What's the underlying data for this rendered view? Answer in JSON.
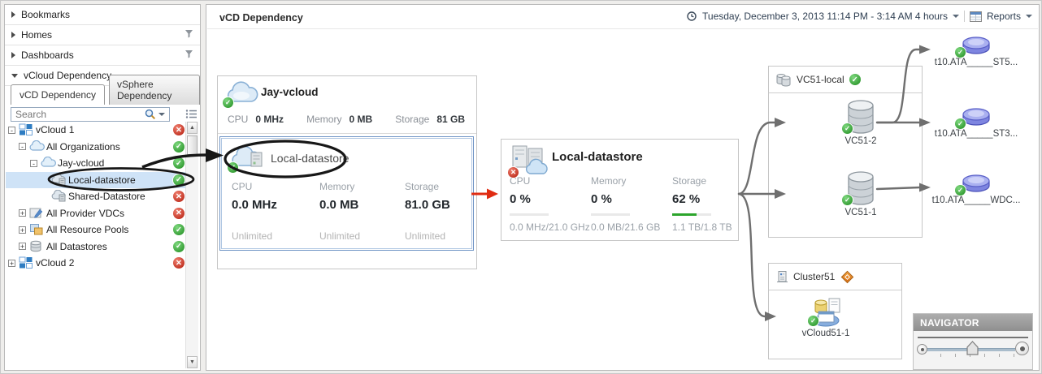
{
  "sidebar": {
    "sections": [
      {
        "label": "Bookmarks"
      },
      {
        "label": "Homes"
      },
      {
        "label": "Dashboards"
      },
      {
        "label": "vCloud Dependency"
      }
    ],
    "tabs": [
      {
        "label": "vCD Dependency",
        "active": true
      },
      {
        "label": "vSphere Dependency",
        "active": false
      }
    ],
    "search": {
      "placeholder": "Search"
    },
    "tree": [
      {
        "label": "vCloud 1",
        "status": "error",
        "expand": "minus"
      },
      {
        "label": "All Organizations",
        "status": "ok",
        "expand": "minus"
      },
      {
        "label": "Jay-vcloud",
        "status": "ok",
        "expand": "minus"
      },
      {
        "label": "Local-datastore",
        "status": "ok",
        "expand": "none",
        "selected": true
      },
      {
        "label": "Shared-Datastore",
        "status": "error",
        "expand": "none"
      },
      {
        "label": "All Provider VDCs",
        "status": "error",
        "expand": "plus"
      },
      {
        "label": "All Resource Pools",
        "status": "ok",
        "expand": "plus"
      },
      {
        "label": "All Datastores",
        "status": "ok",
        "expand": "plus"
      },
      {
        "label": "vCloud 2",
        "status": "error",
        "expand": "plus"
      }
    ]
  },
  "header": {
    "title": "vCD Dependency",
    "time_range": "Tuesday, December 3, 2013 11:14 PM - 3:14 AM 4 hours",
    "reports": "Reports"
  },
  "canvas": {
    "org_card": {
      "title": "Jay-vcloud",
      "status": "ok",
      "metrics": [
        {
          "label": "CPU",
          "value": "0 MHz"
        },
        {
          "label": "Memory",
          "value": "0 MB"
        },
        {
          "label": "Storage",
          "value": "81 GB"
        }
      ]
    },
    "selected_card": {
      "title": "Local-datastore",
      "status": "ok",
      "metrics": [
        {
          "label": "CPU",
          "value": "0.0 MHz",
          "sub": "Unlimited"
        },
        {
          "label": "Memory",
          "value": "0.0 MB",
          "sub": "Unlimited"
        },
        {
          "label": "Storage",
          "value": "81.0 GB",
          "sub": "Unlimited"
        }
      ]
    },
    "datastore_card": {
      "title": "Local-datastore",
      "status": "error",
      "metrics": [
        {
          "label": "CPU",
          "value": "0 %",
          "detail": "0.0 MHz/21.0 GHz",
          "pct": 0
        },
        {
          "label": "Memory",
          "value": "0 %",
          "detail": "0.0 MB/21.6 GB",
          "pct": 0
        },
        {
          "label": "Storage",
          "value": "62 %",
          "detail": "1.1 TB/1.8 TB",
          "pct": 62
        }
      ]
    },
    "vc_card": {
      "title": "VC51-local",
      "status": "ok",
      "nodes": [
        {
          "label": "VC51-2",
          "status": "ok"
        },
        {
          "label": "VC51-1",
          "status": "ok"
        }
      ]
    },
    "cluster_card": {
      "title": "Cluster51",
      "status": "warning",
      "nodes": [
        {
          "label": "vCloud51-1",
          "status": "ok"
        }
      ]
    },
    "disks": [
      {
        "label": "t10.ATA_____ST5...",
        "status": "ok"
      },
      {
        "label": "t10.ATA_____ST3...",
        "status": "ok"
      },
      {
        "label": "t10.ATA_____WDC...",
        "status": "ok"
      }
    ],
    "navigator": {
      "title": "NAVIGATOR"
    }
  },
  "colors": {
    "ok": "#2ea12e",
    "error": "#c8231a",
    "warning": "#e07818",
    "bar_fill": "#2ca52c",
    "selection_border": "#7095c6",
    "arrow": "#6f6f6f",
    "highlight_arrow": "#e02c12",
    "annotation": "#171717",
    "selected_row": "#cfe3f7"
  }
}
